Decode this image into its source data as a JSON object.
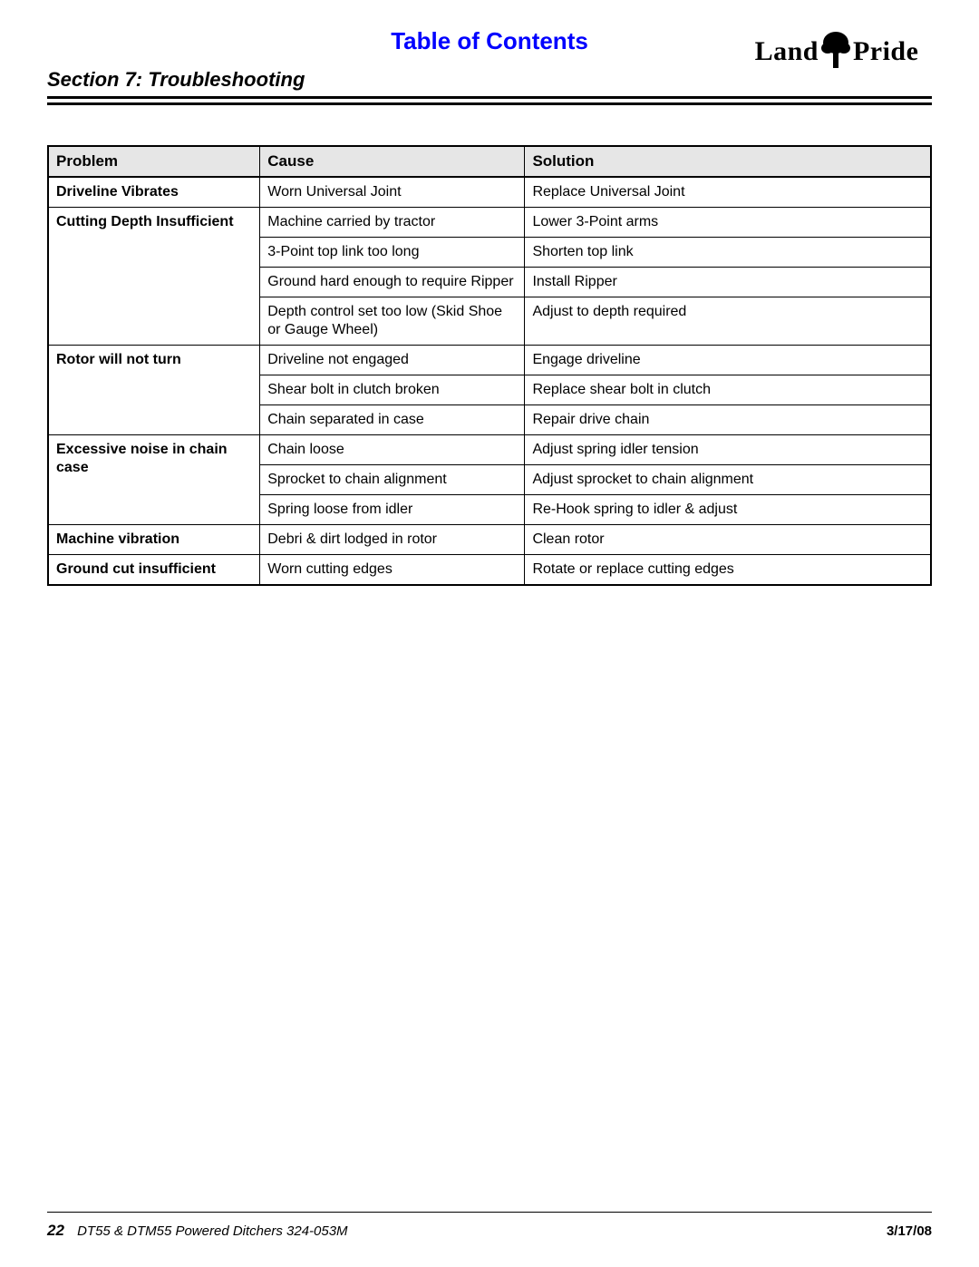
{
  "header": {
    "toc_title": "Table of Contents",
    "section_title": "Section 7: Troubleshooting",
    "logo_text_left": "Land",
    "logo_text_right": "Pride"
  },
  "table": {
    "columns": [
      "Problem",
      "Cause",
      "Solution"
    ],
    "groups": [
      {
        "problem": "Driveline Vibrates",
        "rows": [
          {
            "cause": "Worn Universal Joint",
            "solution": "Replace Universal Joint"
          }
        ]
      },
      {
        "problem": "Cutting Depth Insufficient",
        "rows": [
          {
            "cause": "Machine carried by tractor",
            "solution": "Lower 3-Point arms"
          },
          {
            "cause": "3-Point top link too long",
            "solution": "Shorten top link"
          },
          {
            "cause": "Ground hard enough to require Ripper",
            "solution": "Install Ripper"
          },
          {
            "cause": "Depth control set too low (Skid Shoe or Gauge Wheel)",
            "solution": "Adjust to depth required"
          }
        ]
      },
      {
        "problem": "Rotor will not turn",
        "rows": [
          {
            "cause": "Driveline not engaged",
            "solution": "Engage driveline"
          },
          {
            "cause": "Shear bolt in clutch broken",
            "solution": "Replace shear bolt in clutch"
          },
          {
            "cause": "Chain separated in case",
            "solution": "Repair drive chain"
          }
        ]
      },
      {
        "problem": "Excessive noise in chain case",
        "rows": [
          {
            "cause": "Chain loose",
            "solution": "Adjust spring idler tension"
          },
          {
            "cause": "Sprocket to chain alignment",
            "solution": "Adjust sprocket to chain alignment"
          },
          {
            "cause": "Spring loose from idler",
            "solution": "Re-Hook spring to idler & adjust"
          }
        ]
      },
      {
        "problem": "Machine vibration",
        "rows": [
          {
            "cause": "Debri & dirt lodged in rotor",
            "solution": "Clean rotor"
          }
        ]
      },
      {
        "problem": "Ground cut insufficient",
        "rows": [
          {
            "cause": "Worn cutting edges",
            "solution": "Rotate or replace cutting edges"
          }
        ]
      }
    ]
  },
  "footer": {
    "page_number": "22",
    "doc_title": "DT55 & DTM55 Powered Ditchers   324-053M",
    "date": "3/17/08"
  }
}
